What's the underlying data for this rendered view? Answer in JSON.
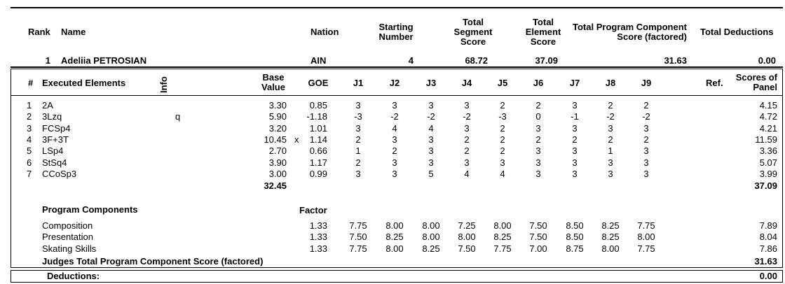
{
  "header": {
    "rank_label": "Rank",
    "name_label": "Name",
    "nation_label": "Nation",
    "starting_number_label": [
      "Starting",
      "Number"
    ],
    "total_segment_label": [
      "Total",
      "Segment",
      "Score"
    ],
    "total_element_label": [
      "Total",
      "Element",
      "Score"
    ],
    "tpcs_label": [
      "Total Program Component",
      "Score (factored)"
    ],
    "total_deductions_label": "Total Deductions"
  },
  "skater": {
    "rank": "1",
    "name": "Adeliia PETROSIAN",
    "nation": "AIN",
    "starting_number": "4",
    "total_segment_score": "68.72",
    "total_element_score": "37.09",
    "total_component_score": "31.63",
    "total_deductions": "0.00"
  },
  "elements_header": {
    "num": "#",
    "executed": "Executed Elements",
    "info": "Info",
    "base_value": [
      "Base",
      "Value"
    ],
    "goe": "GOE",
    "judges": [
      "J1",
      "J2",
      "J3",
      "J4",
      "J5",
      "J6",
      "J7",
      "J8",
      "J9"
    ],
    "ref": "Ref.",
    "scores_of_panel": [
      "Scores of",
      "Panel"
    ]
  },
  "elements": [
    {
      "num": "1",
      "name": "2A",
      "info": "",
      "bv": "3.30",
      "bonus": "",
      "goe": "0.85",
      "j": [
        "3",
        "3",
        "3",
        "3",
        "2",
        "2",
        "3",
        "2",
        "2"
      ],
      "score": "4.15"
    },
    {
      "num": "2",
      "name": "3Lzq",
      "info": "q",
      "bv": "5.90",
      "bonus": "",
      "goe": "-1.18",
      "j": [
        "-3",
        "-2",
        "-2",
        "-2",
        "-3",
        "0",
        "-1",
        "-2",
        "-2"
      ],
      "score": "4.72"
    },
    {
      "num": "3",
      "name": "FCSp4",
      "info": "",
      "bv": "3.20",
      "bonus": "",
      "goe": "1.01",
      "j": [
        "3",
        "4",
        "4",
        "3",
        "2",
        "3",
        "3",
        "3",
        "3"
      ],
      "score": "4.21"
    },
    {
      "num": "4",
      "name": "3F+3T",
      "info": "",
      "bv": "10.45",
      "bonus": "x",
      "goe": "1.14",
      "j": [
        "2",
        "3",
        "3",
        "2",
        "2",
        "2",
        "2",
        "2",
        "2"
      ],
      "score": "11.59"
    },
    {
      "num": "5",
      "name": "LSp4",
      "info": "",
      "bv": "2.70",
      "bonus": "",
      "goe": "0.66",
      "j": [
        "1",
        "2",
        "3",
        "2",
        "2",
        "3",
        "3",
        "1",
        "3"
      ],
      "score": "3.36"
    },
    {
      "num": "6",
      "name": "StSq4",
      "info": "",
      "bv": "3.90",
      "bonus": "",
      "goe": "1.17",
      "j": [
        "2",
        "3",
        "3",
        "3",
        "3",
        "3",
        "3",
        "3",
        "3"
      ],
      "score": "5.07"
    },
    {
      "num": "7",
      "name": "CCoSp3",
      "info": "",
      "bv": "3.00",
      "bonus": "",
      "goe": "0.99",
      "j": [
        "3",
        "3",
        "5",
        "4",
        "4",
        "3",
        "3",
        "3",
        "3"
      ],
      "score": "3.99"
    }
  ],
  "elements_totals": {
    "base_value": "32.45",
    "score": "37.09"
  },
  "components_header": {
    "title": "Program Components",
    "factor": "Factor"
  },
  "components": [
    {
      "name": "Composition",
      "factor": "1.33",
      "j": [
        "7.75",
        "8.00",
        "8.00",
        "7.25",
        "8.00",
        "7.50",
        "8.50",
        "8.25",
        "7.75"
      ],
      "score": "7.89"
    },
    {
      "name": "Presentation",
      "factor": "1.33",
      "j": [
        "7.50",
        "8.25",
        "8.00",
        "8.00",
        "8.25",
        "7.50",
        "8.50",
        "8.25",
        "8.00"
      ],
      "score": "8.04"
    },
    {
      "name": "Skating Skills",
      "factor": "1.33",
      "j": [
        "7.75",
        "8.00",
        "8.25",
        "7.50",
        "7.75",
        "7.00",
        "8.75",
        "8.00",
        "7.75"
      ],
      "score": "7.86"
    }
  ],
  "components_total": {
    "label": "Judges Total Program Component Score (factored)",
    "score": "31.63"
  },
  "deductions": {
    "label": "Deductions:",
    "value": "0.00"
  }
}
